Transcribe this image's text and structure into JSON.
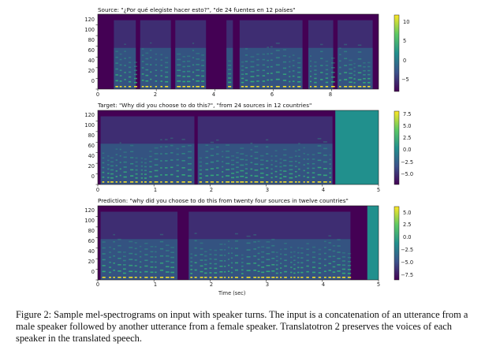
{
  "panels": [
    {
      "title": "Source: \"¿Por qué elegiste hacer esto?\", \"de 24 fuentes en 12 países\"",
      "y_ticks": [
        "120",
        "100",
        "80",
        "60",
        "40",
        "20",
        "0"
      ],
      "x_ticks": [
        "0",
        "2",
        "4",
        "6",
        "8"
      ],
      "colorbar_ticks": [
        "10",
        "5",
        "0",
        "−5"
      ],
      "x_range": [
        0,
        9.6
      ],
      "speech_segments": [
        [
          0.55,
          1.3
        ],
        [
          1.45,
          2.5
        ],
        [
          2.65,
          3.7
        ],
        [
          4.4,
          4.62
        ],
        [
          4.85,
          7.0
        ],
        [
          7.2,
          8.05
        ],
        [
          8.2,
          9.4
        ]
      ],
      "padding_after": null
    },
    {
      "title": "Target: \"Why did you choose to do this?\", \"from 24 sources in 12 countries\"",
      "y_ticks": [
        "120",
        "100",
        "80",
        "60",
        "40",
        "20",
        "0"
      ],
      "x_ticks": [
        "0",
        "1",
        "2",
        "3",
        "4",
        "5"
      ],
      "colorbar_ticks": [
        "7.5",
        "5.0",
        "2.5",
        "0.0",
        "−2.5",
        "−5.0"
      ],
      "x_range": [
        0,
        5
      ],
      "speech_segments": [
        [
          0.05,
          1.72
        ],
        [
          1.78,
          4.18
        ]
      ],
      "padding_after": 4.23
    },
    {
      "title": "Prediction: \"why did you choose to do this from twenty four sources in twelve countries\"",
      "y_ticks": [
        "120",
        "100",
        "80",
        "60",
        "40",
        "20",
        "0"
      ],
      "x_ticks": [
        "0",
        "1",
        "2",
        "3",
        "4",
        "5"
      ],
      "colorbar_ticks": [
        "5.0",
        "2.5",
        "0.0",
        "−2.5",
        "−5.0",
        "−7.5"
      ],
      "x_range": [
        0,
        5
      ],
      "speech_segments": [
        [
          0.05,
          1.42
        ],
        [
          1.62,
          4.5
        ]
      ],
      "padding_after": 4.8
    }
  ],
  "x_axis_label": "Time (sec)",
  "caption": "Figure 2: Sample mel-spectrograms on input with speaker turns. The input is a concatenation of an utterance from a male speaker followed by another utterance from a female speaker. Translatotron 2 preserves the voices of each speaker in the translated speech.",
  "colors": {
    "background": "#440154",
    "padding": "#21908d",
    "harmonic": "#fde725",
    "mid": "#35b779"
  }
}
